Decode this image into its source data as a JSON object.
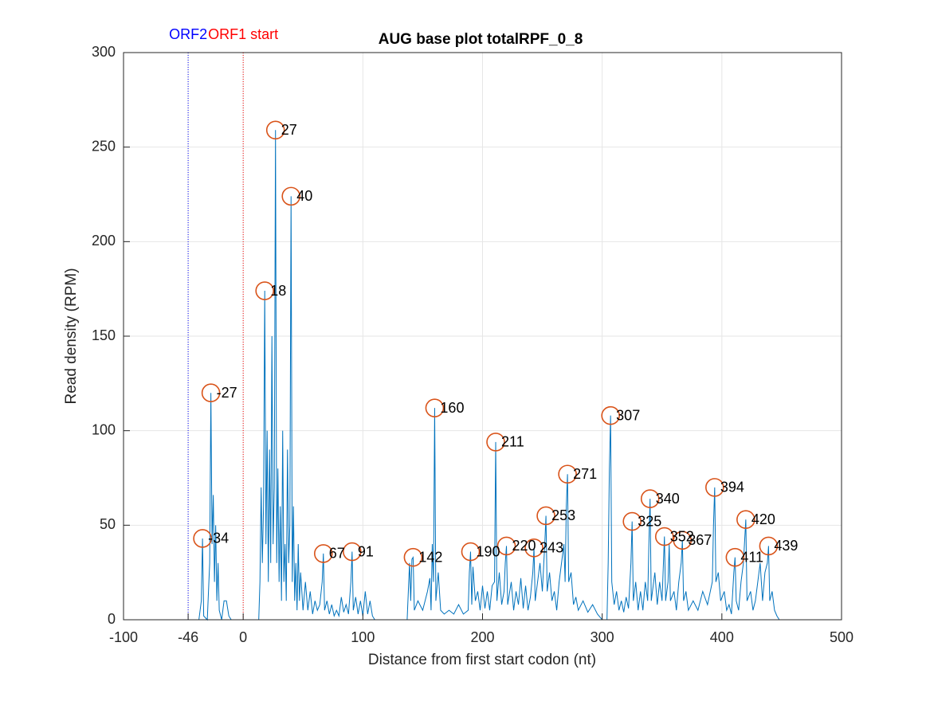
{
  "chart_data": {
    "type": "line",
    "title": "AUG base plot totalRPF_0_8",
    "xlabel": "Distance from first start codon (nt)",
    "ylabel": "Read density (RPM)",
    "xlim": [
      -100,
      500
    ],
    "xticks": [
      -100,
      -46,
      0,
      100,
      200,
      300,
      400,
      500
    ],
    "ylim": [
      0,
      300
    ],
    "yticks": [
      0,
      50,
      100,
      150,
      200,
      250,
      300
    ],
    "grid": true,
    "markers": [
      {
        "x": -46,
        "label": "ORF2",
        "color": "#0000ff"
      },
      {
        "x": 0,
        "label": "ORF1 start",
        "color": "#ff0000"
      }
    ],
    "x": [
      -100,
      -37,
      -35,
      -34,
      -33,
      -30,
      -28,
      -27,
      -26,
      -25,
      -24,
      -23,
      -22,
      -21,
      -20,
      -18,
      -16,
      -14,
      -12,
      -10,
      13,
      14,
      15,
      16,
      17,
      18,
      19,
      20,
      21,
      22,
      23,
      24,
      25,
      26,
      27,
      28,
      29,
      30,
      31,
      32,
      33,
      34,
      35,
      36,
      37,
      38,
      39,
      40,
      41,
      42,
      43,
      44,
      45,
      46,
      47,
      48,
      50,
      52,
      54,
      56,
      58,
      60,
      62,
      64,
      66,
      67,
      68,
      70,
      72,
      74,
      76,
      78,
      80,
      82,
      84,
      86,
      88,
      90,
      91,
      92,
      94,
      96,
      98,
      100,
      102,
      104,
      106,
      108,
      110,
      137,
      139,
      140,
      141,
      142,
      143,
      146,
      150,
      154,
      156,
      157,
      158,
      159,
      160,
      161,
      163,
      165,
      168,
      172,
      176,
      180,
      184,
      188,
      189,
      190,
      191,
      192,
      194,
      196,
      198,
      200,
      202,
      204,
      206,
      208,
      210,
      211,
      212,
      214,
      216,
      218,
      219,
      220,
      221,
      224,
      226,
      228,
      230,
      232,
      234,
      236,
      238,
      240,
      242,
      243,
      244,
      246,
      248,
      250,
      252,
      253,
      254,
      256,
      258,
      260,
      262,
      264,
      266,
      268,
      269,
      270,
      271,
      272,
      274,
      276,
      278,
      280,
      284,
      288,
      292,
      296,
      300,
      304,
      305,
      306,
      307,
      308,
      310,
      312,
      314,
      316,
      318,
      320,
      322,
      324,
      325,
      326,
      328,
      330,
      332,
      334,
      336,
      338,
      339,
      340,
      341,
      344,
      346,
      348,
      350,
      352,
      353,
      355,
      356,
      357,
      360,
      362,
      364,
      366,
      367,
      368,
      370,
      372,
      376,
      380,
      384,
      388,
      392,
      393,
      394,
      395,
      397,
      399,
      402,
      404,
      406,
      408,
      410,
      411,
      412,
      414,
      416,
      418,
      420,
      421,
      424,
      426,
      428,
      430,
      432,
      434,
      436,
      438,
      439,
      440,
      442,
      444,
      446,
      448,
      500
    ],
    "series": [
      {
        "color": "#0072bd",
        "values": [
          0,
          0,
          10,
          43,
          2,
          0,
          30,
          120,
          40,
          66,
          20,
          50,
          10,
          30,
          5,
          0,
          10,
          10,
          2,
          0,
          0,
          20,
          70,
          30,
          60,
          174,
          40,
          100,
          20,
          90,
          30,
          150,
          40,
          70,
          259,
          30,
          80,
          20,
          60,
          10,
          100,
          20,
          40,
          10,
          90,
          30,
          50,
          224,
          20,
          60,
          10,
          30,
          5,
          40,
          10,
          25,
          5,
          20,
          5,
          15,
          3,
          10,
          5,
          8,
          20,
          35,
          5,
          10,
          3,
          8,
          2,
          5,
          2,
          12,
          4,
          8,
          3,
          20,
          36,
          5,
          12,
          3,
          10,
          2,
          15,
          3,
          10,
          2,
          0,
          0,
          30,
          10,
          32,
          33,
          5,
          10,
          5,
          15,
          22,
          5,
          40,
          20,
          112,
          10,
          25,
          5,
          3,
          5,
          3,
          8,
          3,
          5,
          25,
          36,
          8,
          28,
          10,
          15,
          5,
          18,
          6,
          15,
          5,
          18,
          20,
          94,
          10,
          25,
          8,
          15,
          30,
          39,
          8,
          20,
          5,
          15,
          8,
          22,
          6,
          18,
          5,
          12,
          25,
          38,
          10,
          20,
          30,
          15,
          40,
          55,
          15,
          25,
          10,
          15,
          5,
          20,
          30,
          40,
          20,
          60,
          77,
          20,
          25,
          8,
          12,
          5,
          10,
          4,
          8,
          3,
          0,
          0,
          30,
          80,
          108,
          20,
          8,
          15,
          5,
          10,
          4,
          12,
          6,
          30,
          52,
          10,
          20,
          5,
          15,
          5,
          20,
          10,
          40,
          64,
          10,
          25,
          8,
          20,
          10,
          44,
          10,
          20,
          40,
          10,
          15,
          5,
          20,
          30,
          42,
          10,
          15,
          5,
          10,
          5,
          15,
          8,
          20,
          50,
          70,
          20,
          25,
          10,
          15,
          5,
          8,
          3,
          25,
          33,
          10,
          5,
          20,
          30,
          53,
          10,
          15,
          5,
          10,
          20,
          30,
          10,
          25,
          30,
          39,
          10,
          15,
          5,
          2,
          0,
          0
        ]
      }
    ],
    "peaks": {
      "color": "#d95319",
      "x": [
        -34,
        -27,
        18,
        27,
        40,
        67,
        91,
        142,
        160,
        190,
        211,
        220,
        243,
        253,
        271,
        307,
        325,
        340,
        352,
        367,
        394,
        411,
        420,
        439
      ],
      "values": [
        43,
        120,
        174,
        259,
        224,
        35,
        36,
        33,
        112,
        36,
        94,
        39,
        38,
        55,
        77,
        108,
        52,
        64,
        44,
        42,
        70,
        33,
        53,
        39
      ]
    }
  }
}
